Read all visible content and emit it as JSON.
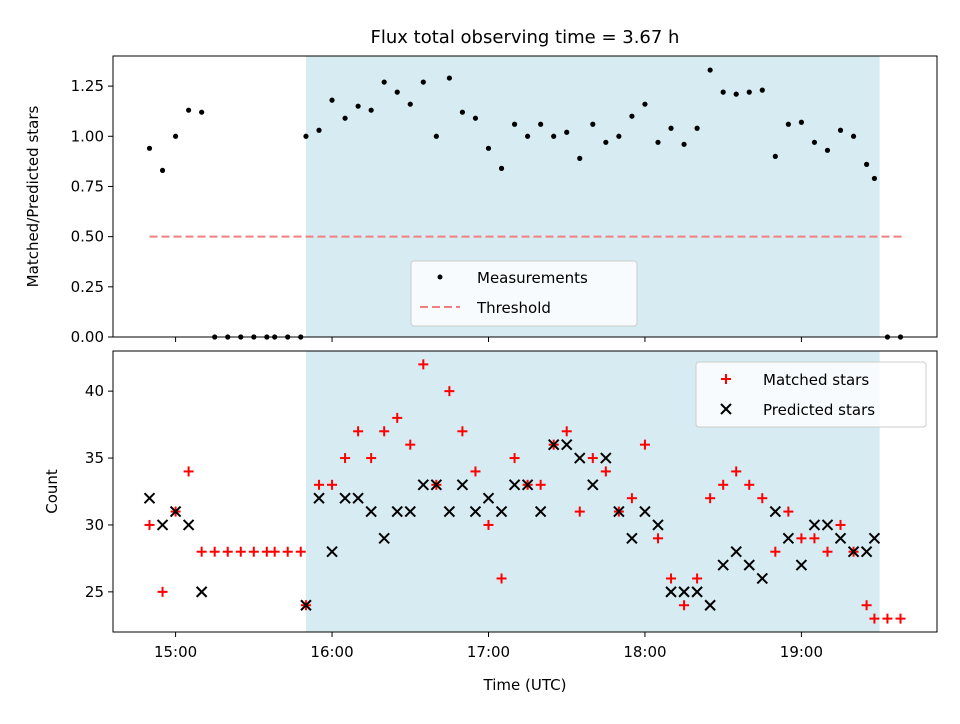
{
  "title": "Flux total observing time = 3.67 h",
  "colors": {
    "shade": "#add8e6",
    "measurement": "#000000",
    "threshold": "#f08080",
    "matched": "#ff0000",
    "predicted": "#000000"
  },
  "x_axis": {
    "label": "Time (UTC)",
    "range": [
      "14:36",
      "19:52"
    ],
    "ticks": [
      "15:00",
      "16:00",
      "17:00",
      "18:00",
      "19:00"
    ]
  },
  "shaded_window": {
    "start": "15:50",
    "end": "19:30"
  },
  "chart_data": [
    {
      "type": "scatter",
      "panel": "top",
      "ylabel": "Matched/Predicted stars",
      "ylim": [
        0,
        1.4
      ],
      "yticks": [
        "0.00",
        "0.25",
        "0.50",
        "0.75",
        "1.00",
        "1.25"
      ],
      "legend": {
        "placement": "lower-center",
        "measurements_label": "Measurements",
        "threshold_label": "Threshold"
      },
      "threshold": {
        "value": 0.5,
        "x_from": "14:50",
        "x_to": "19:40"
      },
      "series": [
        {
          "name": "Measurements",
          "x": [
            "14:50",
            "14:55",
            "15:00",
            "15:05",
            "15:10",
            "15:15",
            "15:20",
            "15:25",
            "15:30",
            "15:35",
            "15:38",
            "15:43",
            "15:48",
            "15:50",
            "15:55",
            "16:00",
            "16:05",
            "16:10",
            "16:15",
            "16:20",
            "16:25",
            "16:30",
            "16:35",
            "16:40",
            "16:45",
            "16:50",
            "16:55",
            "17:00",
            "17:05",
            "17:10",
            "17:15",
            "17:20",
            "17:25",
            "17:30",
            "17:35",
            "17:40",
            "17:45",
            "17:50",
            "17:55",
            "18:00",
            "18:05",
            "18:10",
            "18:15",
            "18:20",
            "18:25",
            "18:30",
            "18:35",
            "18:40",
            "18:45",
            "18:50",
            "18:55",
            "19:00",
            "19:05",
            "19:10",
            "19:15",
            "19:20",
            "19:25",
            "19:28",
            "19:33",
            "19:38"
          ],
          "y": [
            0.94,
            0.83,
            1.0,
            1.13,
            1.12,
            0,
            0,
            0,
            0,
            0,
            0,
            0,
            0,
            1.0,
            1.03,
            1.18,
            1.09,
            1.15,
            1.13,
            1.27,
            1.22,
            1.16,
            1.27,
            1.0,
            1.29,
            1.12,
            1.09,
            0.94,
            0.84,
            1.06,
            1.0,
            1.06,
            1.0,
            1.02,
            0.89,
            1.06,
            0.97,
            1.0,
            1.1,
            1.16,
            0.97,
            1.04,
            0.96,
            1.04,
            1.33,
            1.22,
            1.21,
            1.22,
            1.23,
            0.9,
            1.06,
            1.07,
            0.97,
            0.93,
            1.03,
            1.0,
            0.86,
            0.79,
            0,
            0
          ]
        }
      ]
    },
    {
      "type": "scatter",
      "panel": "bottom",
      "ylabel": "Count",
      "ylim": [
        22,
        43
      ],
      "yticks": [
        "25",
        "30",
        "35",
        "40"
      ],
      "legend": {
        "placement": "upper-right"
      },
      "series": [
        {
          "name": "Matched stars",
          "marker": "plus",
          "x": [
            "14:50",
            "14:55",
            "15:00",
            "15:05",
            "15:10",
            "15:15",
            "15:20",
            "15:25",
            "15:30",
            "15:35",
            "15:38",
            "15:43",
            "15:48",
            "15:50",
            "15:55",
            "16:00",
            "16:05",
            "16:10",
            "16:15",
            "16:20",
            "16:25",
            "16:30",
            "16:35",
            "16:40",
            "16:45",
            "16:50",
            "16:55",
            "17:00",
            "17:05",
            "17:10",
            "17:15",
            "17:20",
            "17:25",
            "17:30",
            "17:35",
            "17:40",
            "17:45",
            "17:50",
            "17:55",
            "18:00",
            "18:05",
            "18:10",
            "18:15",
            "18:20",
            "18:25",
            "18:30",
            "18:35",
            "18:40",
            "18:45",
            "18:50",
            "18:55",
            "19:00",
            "19:05",
            "19:10",
            "19:15",
            "19:20",
            "19:25",
            "19:28",
            "19:33",
            "19:38"
          ],
          "y": [
            30,
            25,
            31,
            34,
            28,
            28,
            28,
            28,
            28,
            28,
            28,
            28,
            28,
            24,
            33,
            33,
            35,
            37,
            35,
            37,
            38,
            36,
            42,
            33,
            40,
            37,
            34,
            30,
            26,
            35,
            33,
            33,
            36,
            37,
            31,
            35,
            34,
            31,
            32,
            36,
            29,
            26,
            24,
            26,
            32,
            33,
            34,
            33,
            32,
            28,
            31,
            29,
            29,
            28,
            30,
            28,
            24,
            23,
            23,
            23
          ]
        },
        {
          "name": "Predicted stars",
          "marker": "x",
          "x": [
            "14:50",
            "14:55",
            "15:00",
            "15:05",
            "15:10",
            "15:50",
            "15:55",
            "16:00",
            "16:05",
            "16:10",
            "16:15",
            "16:20",
            "16:25",
            "16:30",
            "16:35",
            "16:40",
            "16:45",
            "16:50",
            "16:55",
            "17:00",
            "17:05",
            "17:10",
            "17:15",
            "17:20",
            "17:25",
            "17:30",
            "17:35",
            "17:40",
            "17:45",
            "17:50",
            "17:55",
            "18:00",
            "18:05",
            "18:10",
            "18:15",
            "18:20",
            "18:25",
            "18:30",
            "18:35",
            "18:40",
            "18:45",
            "18:50",
            "18:55",
            "19:00",
            "19:05",
            "19:10",
            "19:15",
            "19:20",
            "19:25",
            "19:28"
          ],
          "y": [
            32,
            30,
            31,
            30,
            25,
            24,
            32,
            28,
            32,
            32,
            31,
            29,
            31,
            31,
            33,
            33,
            31,
            33,
            31,
            32,
            31,
            33,
            33,
            31,
            36,
            36,
            35,
            33,
            35,
            31,
            29,
            31,
            30,
            25,
            25,
            25,
            24,
            27,
            28,
            27,
            26,
            31,
            29,
            27,
            30,
            30,
            29,
            28,
            28,
            29
          ]
        }
      ]
    }
  ]
}
